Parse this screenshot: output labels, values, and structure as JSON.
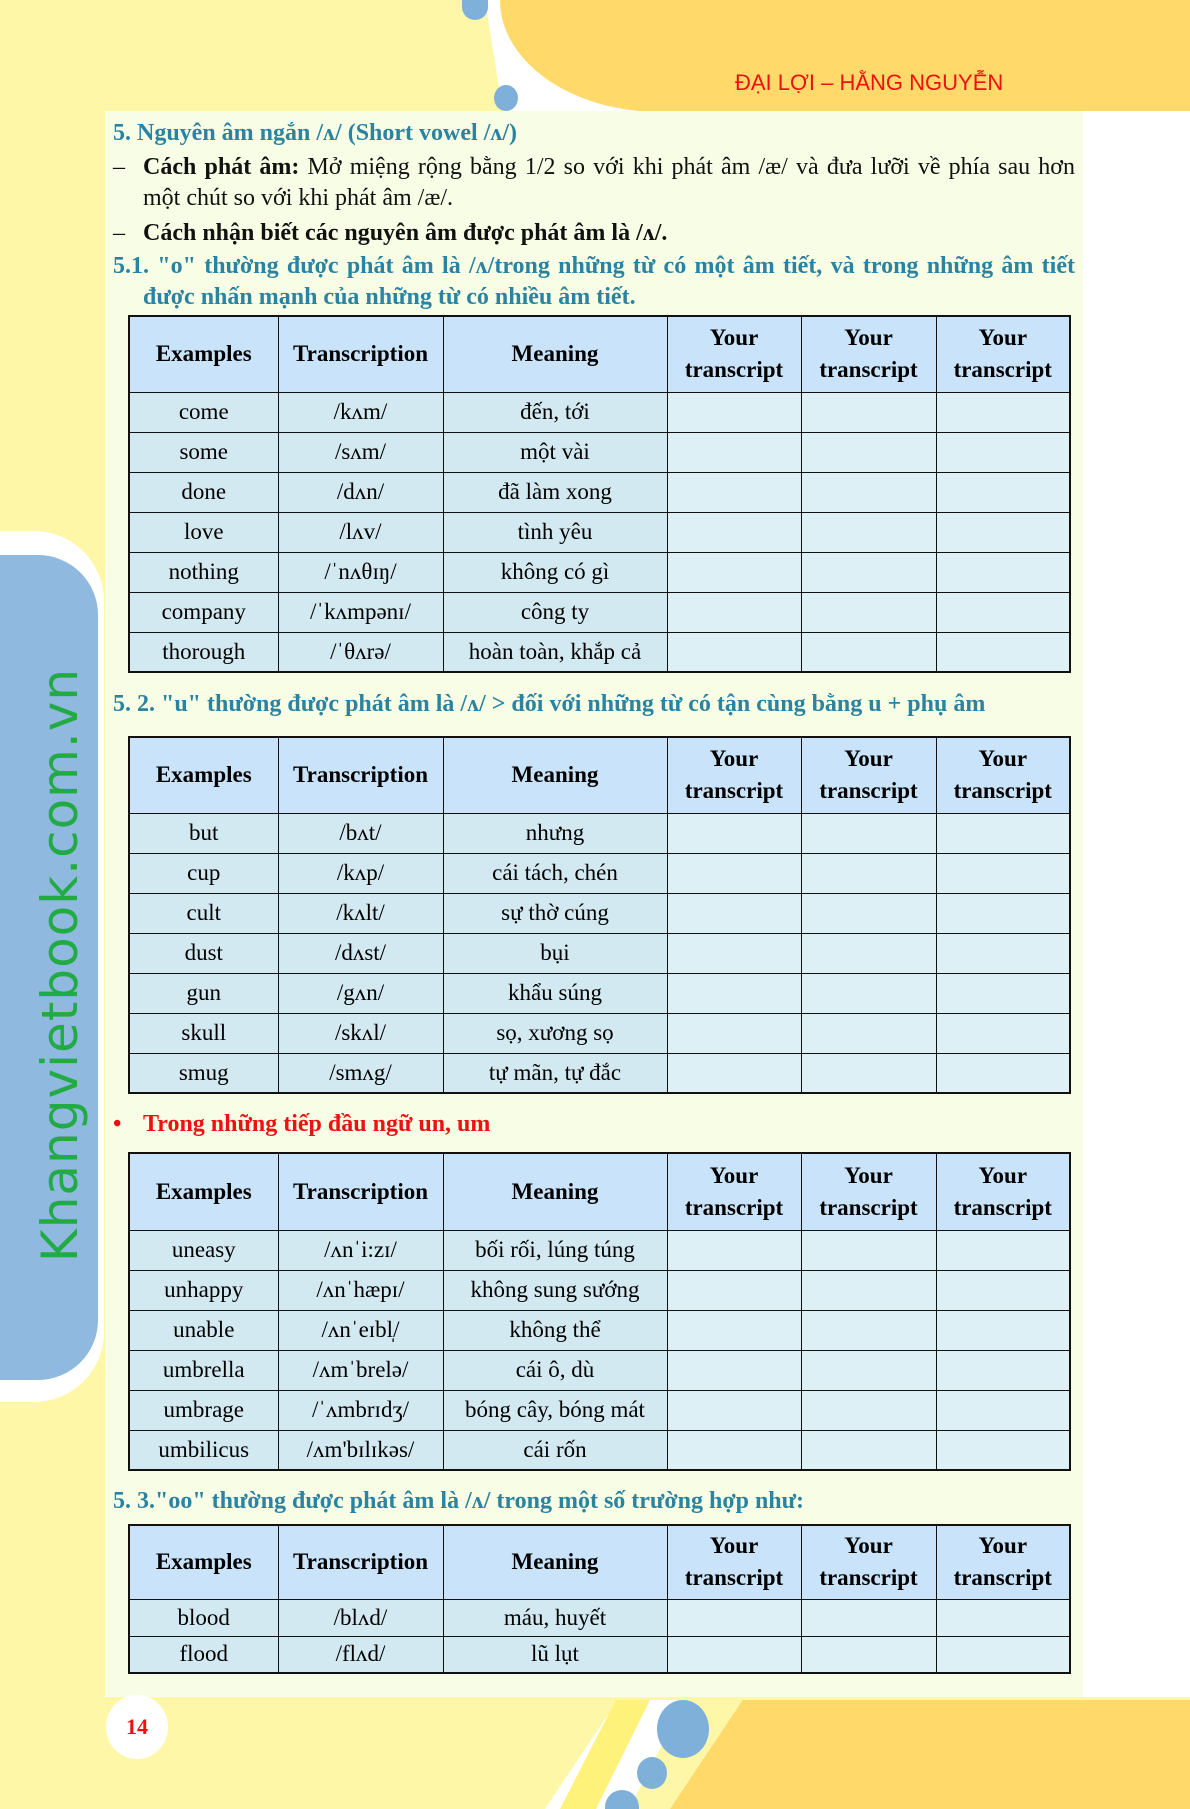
{
  "header": {
    "author": "ĐẠI LỢI – HẰNG NGUYỄN"
  },
  "watermark": "Khangvietbook.com.vn",
  "page_number": "14",
  "colors": {
    "heading": "#2a83a0",
    "accent_red": "#ee1111",
    "table_header": "#c9e4fa",
    "table_row": "#d3e9f1",
    "page_bg": "#fff7a8",
    "orange": "#ffd96a"
  },
  "section": {
    "title": "5. Nguyên âm ngắn /ʌ/ (Short vowel /ʌ/)",
    "pron_label": "Cách phát âm:",
    "pron_text": " Mở miệng rộng bằng 1/2 so với khi phát âm /æ/ và đưa lưỡi về phía sau hơn một chút so với khi phát âm /æ/.",
    "recog": "Cách nhận biết các nguyên âm được phát âm là /ʌ/.",
    "dash": "–"
  },
  "headers": [
    "Examples",
    "Transcription",
    "Meaning",
    "Your transcript",
    "Your transcript",
    "Your transcript"
  ],
  "subsections": [
    {
      "heading": "5.1. \"o\" thường được phát âm là /ʌ/trong những từ có một âm tiết, và trong những âm tiết được nhấn mạnh của những từ có nhiều âm tiết.",
      "rows": [
        [
          "come",
          "/kʌm/",
          "đến, tới"
        ],
        [
          "some",
          "/sʌm/",
          "một vài"
        ],
        [
          "done",
          "/dʌn/",
          "đã làm xong"
        ],
        [
          "love",
          "/lʌv/",
          "tình yêu"
        ],
        [
          "nothing",
          "/ˈnʌθɪŋ/",
          "không có gì"
        ],
        [
          "company",
          "/ˈkʌmpənɪ/",
          "công ty"
        ],
        [
          "thorough",
          "/ˈθʌrə/",
          "hoàn toàn, khắp cả"
        ]
      ]
    },
    {
      "heading": "5. 2. \"u\" thường được phát âm là /ʌ/ > đối với những từ có tận cùng bằng u + phụ âm",
      "rows": [
        [
          "but",
          "/bʌt/",
          "nhưng"
        ],
        [
          "cup",
          "/kʌp/",
          "cái tách, chén"
        ],
        [
          "cult",
          "/kʌlt/",
          "sự thờ cúng"
        ],
        [
          "dust",
          "/dʌst/",
          "bụi"
        ],
        [
          "gun",
          "/gʌn/",
          "khẩu súng"
        ],
        [
          "skull",
          "/skʌl/",
          "sọ, xương sọ"
        ],
        [
          "smug",
          "/smʌg/",
          "tự mãn, tự đắc"
        ]
      ]
    },
    {
      "heading": "Trong những tiếp đầu ngữ un, um",
      "bullet": "•",
      "rows": [
        [
          "uneasy",
          "/ʌnˈi:zɪ/",
          "bối rối, lúng túng"
        ],
        [
          "unhappy",
          "/ʌnˈhæpɪ/",
          "không sung sướng"
        ],
        [
          "unable",
          "/ʌnˈeɪbl̩/",
          "không thể"
        ],
        [
          "umbrella",
          "/ʌmˈbrelə/",
          "cái ô, dù"
        ],
        [
          "umbrage",
          "/ˈʌmbrɪdʒ/",
          "bóng cây, bóng mát"
        ],
        [
          "umbilicus",
          "/ʌm'bɪlɪkəs/",
          "cái rốn"
        ]
      ]
    },
    {
      "heading": "5. 3.\"oo\" thường được phát âm là /ʌ/ trong một số trường hợp như:",
      "rows": [
        [
          "blood",
          "/blʌd/",
          "máu, huyết"
        ],
        [
          "flood",
          "/flʌd/",
          "lũ lụt"
        ]
      ]
    }
  ]
}
